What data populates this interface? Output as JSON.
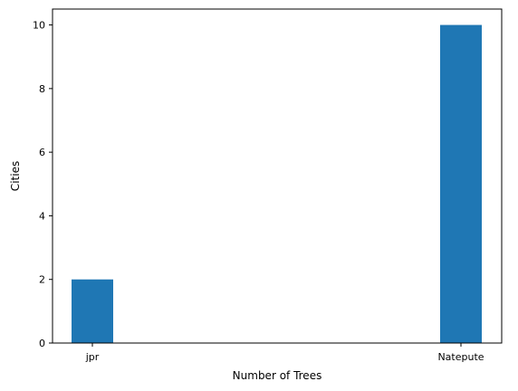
{
  "chart_data": {
    "type": "bar",
    "categories": [
      "jpr",
      "Natepute"
    ],
    "values": [
      2,
      10
    ],
    "title": "",
    "xlabel": "Number of Trees",
    "ylabel": "Cities",
    "ylim": [
      0,
      10.5
    ],
    "yticks": [
      "0",
      "2",
      "4",
      "6",
      "8",
      "10"
    ],
    "grid": false,
    "bar_color": "#1f77b4"
  }
}
